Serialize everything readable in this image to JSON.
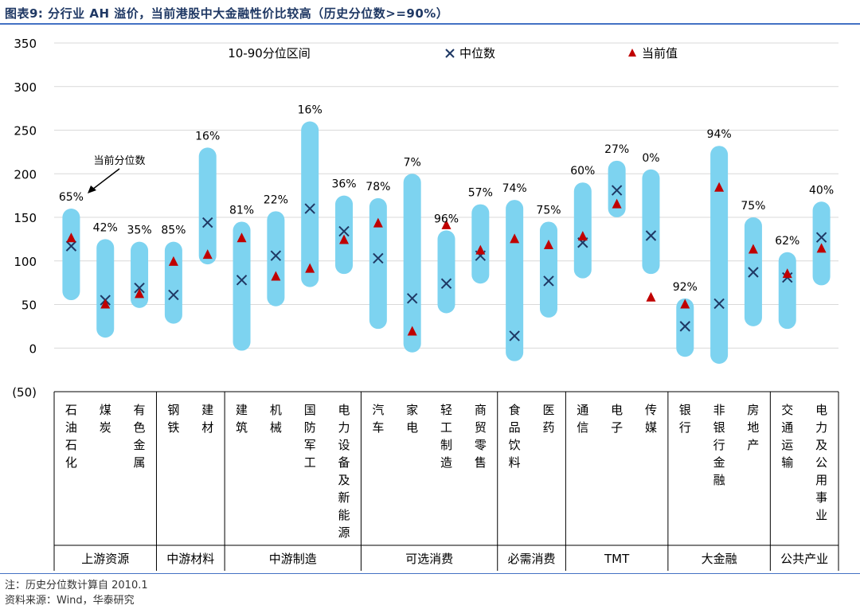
{
  "figure_title": "图表9:  分行业 AH 溢价，当前港股中大金融性价比较高（历史分位数>=90%）",
  "note": "注：历史分位数计算自 2010.1",
  "source": "资料来源：Wind，华泰研究",
  "annotation": "当前分位数",
  "colors": {
    "range_bar": "#7dd3f0",
    "median_marker": "#1f3864",
    "current_marker": "#c00000",
    "title": "#1f3864",
    "rule": "#4472c4"
  },
  "chart_data": {
    "type": "range_bar_with_markers",
    "ylim": [
      -50,
      350
    ],
    "yticks": [
      -50,
      0,
      50,
      100,
      150,
      200,
      250,
      300,
      350
    ],
    "ytick_labels": [
      "(50)",
      "0",
      "50",
      "100",
      "150",
      "200",
      "250",
      "300",
      "350"
    ],
    "grid": true,
    "legend_position": "top",
    "legend": [
      "10-90分位区间",
      "中位数",
      "当前值"
    ],
    "categories": [
      "石油石化",
      "煤炭",
      "有色金属",
      "钢铁",
      "建材",
      "建筑",
      "机械",
      "国防军工",
      "电力设备及新能源",
      "汽车",
      "家电",
      "轻工制造",
      "商贸零售",
      "食品饮料",
      "医药",
      "通信",
      "电子",
      "传媒",
      "银行",
      "非银行金融",
      "房地产",
      "交通运输",
      "电力及公用事业"
    ],
    "groups": [
      {
        "name": "上游资源",
        "count": 3
      },
      {
        "name": "中游材料",
        "count": 2
      },
      {
        "name": "中游制造",
        "count": 4
      },
      {
        "name": "可选消费",
        "count": 4
      },
      {
        "name": "必需消费",
        "count": 2
      },
      {
        "name": "TMT",
        "count": 3
      },
      {
        "name": "大金融",
        "count": 3
      },
      {
        "name": "公共产业",
        "count": 2
      }
    ],
    "series": [
      {
        "name": "10-90分位区间",
        "low": [
          55,
          12,
          46,
          28,
          96,
          -3,
          48,
          70,
          85,
          22,
          -5,
          40,
          74,
          -15,
          35,
          80,
          150,
          85,
          -10,
          -18,
          25,
          22,
          72
        ],
        "high": [
          160,
          125,
          122,
          122,
          230,
          145,
          157,
          260,
          175,
          172,
          200,
          135,
          165,
          170,
          145,
          190,
          215,
          205,
          57,
          232,
          150,
          110,
          168
        ]
      },
      {
        "name": "中位数",
        "values": [
          117,
          55,
          69,
          61,
          144,
          78,
          106,
          160,
          134,
          103,
          57,
          74,
          106,
          14,
          77,
          121,
          181,
          129,
          25,
          51,
          87,
          81,
          127
        ]
      },
      {
        "name": "当前值",
        "values": [
          126,
          50,
          62,
          99,
          107,
          126,
          82,
          91,
          124,
          143,
          19,
          141,
          112,
          125,
          118,
          128,
          165,
          58,
          50,
          184,
          113,
          85,
          114
        ]
      }
    ],
    "percentile_labels": [
      "65%",
      "42%",
      "35%",
      "85%",
      "16%",
      "81%",
      "22%",
      "16%",
      "36%",
      "78%",
      "7%",
      "96%",
      "57%",
      "74%",
      "75%",
      "60%",
      "27%",
      "0%",
      "92%",
      "94%",
      "75%",
      "62%",
      "40%"
    ]
  }
}
